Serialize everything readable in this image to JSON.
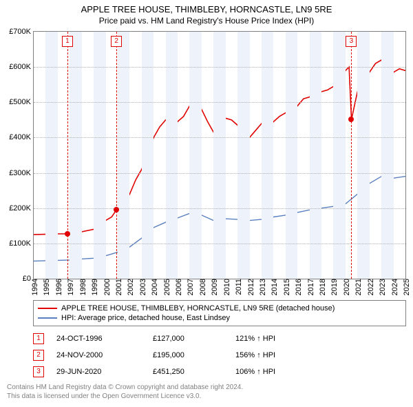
{
  "title_line1": "APPLE TREE HOUSE, THIMBLEBY, HORNCASTLE, LN9 5RE",
  "title_line2": "Price paid vs. HM Land Registry's House Price Index (HPI)",
  "chart": {
    "type": "line",
    "background_color": "#ffffff",
    "grid_color": "#b0b0b0",
    "band_color": "#eef2fa",
    "x_min": 1994,
    "x_max": 2025,
    "x_ticks": [
      1994,
      1995,
      1996,
      1997,
      1998,
      1999,
      2000,
      2001,
      2002,
      2003,
      2004,
      2005,
      2006,
      2007,
      2008,
      2009,
      2010,
      2011,
      2012,
      2013,
      2014,
      2015,
      2016,
      2017,
      2018,
      2019,
      2020,
      2021,
      2022,
      2023,
      2024,
      2025
    ],
    "y_min": 0,
    "y_max": 700000,
    "y_ticks": [
      {
        "v": 0,
        "label": "£0"
      },
      {
        "v": 100000,
        "label": "£100K"
      },
      {
        "v": 200000,
        "label": "£200K"
      },
      {
        "v": 300000,
        "label": "£300K"
      },
      {
        "v": 400000,
        "label": "£400K"
      },
      {
        "v": 500000,
        "label": "£500K"
      },
      {
        "v": 600000,
        "label": "£600K"
      },
      {
        "v": 700000,
        "label": "£700K"
      }
    ],
    "series": [
      {
        "name": "APPLE TREE HOUSE, THIMBLEBY, HORNCASTLE, LN9 5RE (detached house)",
        "color": "#e00000",
        "width": 1.6,
        "points": [
          [
            1994,
            125000
          ],
          [
            1995,
            126000
          ],
          [
            1996,
            127000
          ],
          [
            1996.8,
            127000
          ],
          [
            1997.5,
            128000
          ],
          [
            1998,
            133000
          ],
          [
            1999,
            140000
          ],
          [
            1999.5,
            150000
          ],
          [
            2000,
            165000
          ],
          [
            2000.5,
            175000
          ],
          [
            2000.9,
            195000
          ],
          [
            2001.5,
            210000
          ],
          [
            2002,
            240000
          ],
          [
            2002.5,
            280000
          ],
          [
            2003,
            310000
          ],
          [
            2003.5,
            350000
          ],
          [
            2004,
            400000
          ],
          [
            2004.5,
            430000
          ],
          [
            2005,
            450000
          ],
          [
            2005.5,
            455000
          ],
          [
            2006,
            445000
          ],
          [
            2006.5,
            460000
          ],
          [
            2007,
            490000
          ],
          [
            2007.5,
            485000
          ],
          [
            2008,
            480000
          ],
          [
            2008.5,
            445000
          ],
          [
            2009,
            415000
          ],
          [
            2009.5,
            430000
          ],
          [
            2010,
            455000
          ],
          [
            2010.5,
            450000
          ],
          [
            2011,
            435000
          ],
          [
            2011.5,
            415000
          ],
          [
            2012,
            400000
          ],
          [
            2012.5,
            420000
          ],
          [
            2013,
            440000
          ],
          [
            2013.5,
            430000
          ],
          [
            2014,
            445000
          ],
          [
            2014.5,
            460000
          ],
          [
            2015,
            470000
          ],
          [
            2015.5,
            475000
          ],
          [
            2016,
            490000
          ],
          [
            2016.5,
            510000
          ],
          [
            2017,
            515000
          ],
          [
            2017.5,
            525000
          ],
          [
            2018,
            530000
          ],
          [
            2018.5,
            535000
          ],
          [
            2019,
            545000
          ],
          [
            2019.5,
            560000
          ],
          [
            2020,
            590000
          ],
          [
            2020.3,
            600000
          ],
          [
            2020.5,
            451250
          ],
          [
            2021,
            530000
          ],
          [
            2021.5,
            560000
          ],
          [
            2022,
            585000
          ],
          [
            2022.5,
            610000
          ],
          [
            2023,
            620000
          ],
          [
            2023.5,
            580000
          ],
          [
            2024,
            585000
          ],
          [
            2024.5,
            595000
          ],
          [
            2025,
            590000
          ]
        ]
      },
      {
        "name": "HPI: Average price, detached house, East Lindsey",
        "color": "#5a7fc0",
        "width": 1.4,
        "points": [
          [
            1994,
            50000
          ],
          [
            1995,
            51000
          ],
          [
            1996,
            52000
          ],
          [
            1997,
            53000
          ],
          [
            1998,
            56000
          ],
          [
            1999,
            58000
          ],
          [
            2000,
            65000
          ],
          [
            2001,
            75000
          ],
          [
            2002,
            90000
          ],
          [
            2003,
            115000
          ],
          [
            2004,
            145000
          ],
          [
            2005,
            160000
          ],
          [
            2006,
            172000
          ],
          [
            2007,
            185000
          ],
          [
            2008,
            180000
          ],
          [
            2009,
            165000
          ],
          [
            2010,
            170000
          ],
          [
            2011,
            168000
          ],
          [
            2012,
            165000
          ],
          [
            2013,
            168000
          ],
          [
            2014,
            175000
          ],
          [
            2015,
            180000
          ],
          [
            2016,
            188000
          ],
          [
            2017,
            195000
          ],
          [
            2018,
            200000
          ],
          [
            2019,
            205000
          ],
          [
            2020,
            212000
          ],
          [
            2021,
            240000
          ],
          [
            2022,
            270000
          ],
          [
            2023,
            290000
          ],
          [
            2024,
            285000
          ],
          [
            2025,
            290000
          ]
        ]
      }
    ],
    "markers": [
      {
        "num": "1",
        "x": 1996.81,
        "y": 127000
      },
      {
        "num": "2",
        "x": 2000.9,
        "y": 195000
      },
      {
        "num": "3",
        "x": 2020.49,
        "y": 451250
      }
    ]
  },
  "legend": {
    "items": [
      {
        "color": "#e00000",
        "label": "APPLE TREE HOUSE, THIMBLEBY, HORNCASTLE, LN9 5RE (detached house)"
      },
      {
        "color": "#5a7fc0",
        "label": "HPI: Average price, detached house, East Lindsey"
      }
    ]
  },
  "table": {
    "rows": [
      {
        "num": "1",
        "date": "24-OCT-1996",
        "price": "£127,000",
        "pct": "121% ↑ HPI"
      },
      {
        "num": "2",
        "date": "24-NOV-2000",
        "price": "£195,000",
        "pct": "156% ↑ HPI"
      },
      {
        "num": "3",
        "date": "29-JUN-2020",
        "price": "£451,250",
        "pct": "106% ↑ HPI"
      }
    ]
  },
  "footer": {
    "line1": "Contains HM Land Registry data © Crown copyright and database right 2024.",
    "line2": "This data is licensed under the Open Government Licence v3.0."
  }
}
